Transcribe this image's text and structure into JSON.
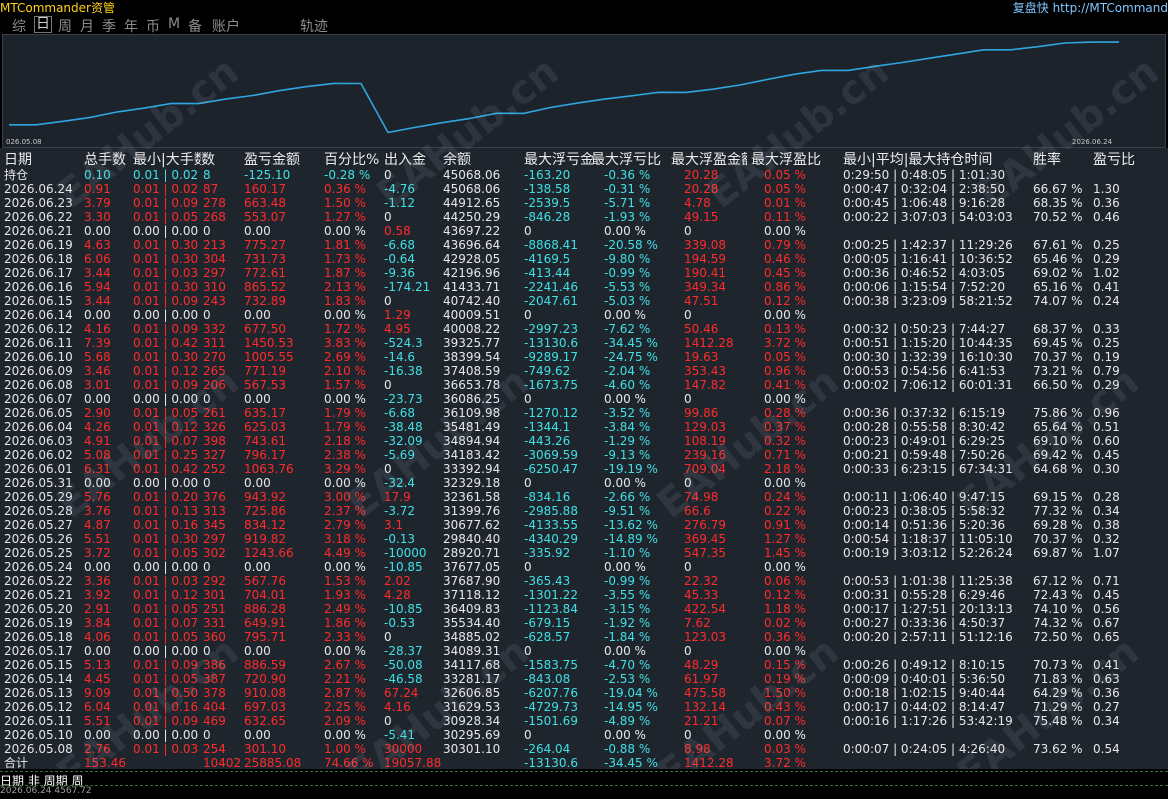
{
  "app": {
    "title": "MTCommander资管",
    "replay": "复盘快 http://MTCommand"
  },
  "tabs": [
    {
      "label": "综",
      "active": false
    },
    {
      "label": "日",
      "active": true
    },
    {
      "label": "周",
      "active": false
    },
    {
      "label": "月",
      "active": false
    },
    {
      "label": "季",
      "active": false
    },
    {
      "label": "年",
      "active": false
    },
    {
      "label": "币",
      "active": false
    },
    {
      "label": "M",
      "active": false
    },
    {
      "label": "备",
      "active": false
    },
    {
      "label": "账户",
      "active": false
    },
    {
      "label": "轨迹",
      "active": false
    }
  ],
  "equity_chart": {
    "start_label": "026.05.08",
    "end_label": "2026.06.24",
    "line_color": "#2fa6e0",
    "values": [
      30301.1,
      30295.69,
      30928.34,
      31629.53,
      32606.85,
      33281.17,
      34117.68,
      34089.31,
      34885.02,
      35534.4,
      36409.83,
      37118.12,
      37687.9,
      37677.05,
      28920.71,
      29840.4,
      30677.62,
      31399.76,
      32361.58,
      32329.18,
      33392.94,
      34183.42,
      34894.94,
      35481.49,
      36109.98,
      36086.25,
      36653.78,
      37408.59,
      38399.54,
      39325.77,
      40008.22,
      40009.51,
      40742.4,
      41433.71,
      42196.96,
      42928.05,
      43696.64,
      43697.22,
      44250.29,
      44912.65,
      45068.06,
      45068.06
    ]
  },
  "columns": [
    "日期",
    "总手数",
    "最小|大手数",
    "数",
    "盈亏金额",
    "百分比%",
    "出入金",
    "余额",
    "最大浮亏金额",
    "最大浮亏比",
    "最大浮盈金额",
    "最大浮盈比",
    "最小|平均|最大持仓时间",
    "胜率",
    "盈亏比"
  ],
  "hold_label": "持仓",
  "hold_row": {
    "lots": "0.10",
    "minmax": "0.01 | 0.02",
    "count": "8",
    "pnl": "-125.10",
    "pct": "-0.28 %",
    "io": "0",
    "balance": "45068.06",
    "dd": "-163.20",
    "ddpct": "-0.36 %",
    "fp": "20.28",
    "fppct": "0.05 %",
    "hold": "0:29:50 | 0:48:05 | 1:01:30",
    "win": "",
    "pf": ""
  },
  "rows": [
    {
      "date": "2026.06.24",
      "lots": "0.91",
      "minmax": "0.01 | 0.02",
      "count": "87",
      "pnl": "160.17",
      "pct": "0.36 %",
      "io": "-4.76",
      "balance": "45068.06",
      "dd": "-138.58",
      "ddpct": "-0.31 %",
      "fp": "20.28",
      "fppct": "0.05 %",
      "hold": "0:00:47 | 0:32:04 | 2:38:50",
      "win": "66.67 %",
      "pf": "1.30"
    },
    {
      "date": "2026.06.23",
      "lots": "3.79",
      "minmax": "0.01 | 0.09",
      "count": "278",
      "pnl": "663.48",
      "pct": "1.50 %",
      "io": "-1.12",
      "balance": "44912.65",
      "dd": "-2539.5",
      "ddpct": "-5.71 %",
      "fp": "4.78",
      "fppct": "0.01 %",
      "hold": "0:00:45 | 1:06:48 | 9:16:28",
      "win": "68.35 %",
      "pf": "0.36"
    },
    {
      "date": "2026.06.22",
      "lots": "3.30",
      "minmax": "0.01 | 0.05",
      "count": "268",
      "pnl": "553.07",
      "pct": "1.27 %",
      "io": "0",
      "balance": "44250.29",
      "dd": "-846.28",
      "ddpct": "-1.93 %",
      "fp": "49.15",
      "fppct": "0.11 %",
      "hold": "0:00:22 | 3:07:03 | 54:03:03",
      "win": "70.52 %",
      "pf": "0.46"
    },
    {
      "date": "2026.06.21",
      "lots": "0.00",
      "minmax": "0.00 | 0.00",
      "count": "0",
      "pnl": "0.00",
      "pct": "0.00 %",
      "io": "0.58",
      "balance": "43697.22",
      "dd": "0",
      "ddpct": "0.00 %",
      "fp": "0",
      "fppct": "0.00 %",
      "hold": "",
      "win": "",
      "pf": ""
    },
    {
      "date": "2026.06.19",
      "lots": "4.63",
      "minmax": "0.01 | 0.30",
      "count": "213",
      "pnl": "775.27",
      "pct": "1.81 %",
      "io": "-6.68",
      "balance": "43696.64",
      "dd": "-8868.41",
      "ddpct": "-20.58 %",
      "fp": "339.08",
      "fppct": "0.79 %",
      "hold": "0:00:25 | 1:42:37 | 11:29:26",
      "win": "67.61 %",
      "pf": "0.25"
    },
    {
      "date": "2026.06.18",
      "lots": "6.06",
      "minmax": "0.01 | 0.30",
      "count": "304",
      "pnl": "731.73",
      "pct": "1.73 %",
      "io": "-0.64",
      "balance": "42928.05",
      "dd": "-4169.5",
      "ddpct": "-9.80 %",
      "fp": "194.59",
      "fppct": "0.46 %",
      "hold": "0:00:05 | 1:16:41 | 10:36:52",
      "win": "65.46 %",
      "pf": "0.29"
    },
    {
      "date": "2026.06.17",
      "lots": "3.44",
      "minmax": "0.01 | 0.03",
      "count": "297",
      "pnl": "772.61",
      "pct": "1.87 %",
      "io": "-9.36",
      "balance": "42196.96",
      "dd": "-413.44",
      "ddpct": "-0.99 %",
      "fp": "190.41",
      "fppct": "0.45 %",
      "hold": "0:00:36 | 0:46:52 | 4:03:05",
      "win": "69.02 %",
      "pf": "1.02"
    },
    {
      "date": "2026.06.16",
      "lots": "5.94",
      "minmax": "0.01 | 0.30",
      "count": "310",
      "pnl": "865.52",
      "pct": "2.13 %",
      "io": "-174.21",
      "balance": "41433.71",
      "dd": "-2241.46",
      "ddpct": "-5.53 %",
      "fp": "349.34",
      "fppct": "0.86 %",
      "hold": "0:00:06 | 1:15:54 | 7:52:20",
      "win": "65.16 %",
      "pf": "0.41"
    },
    {
      "date": "2026.06.15",
      "lots": "3.44",
      "minmax": "0.01 | 0.09",
      "count": "243",
      "pnl": "732.89",
      "pct": "1.83 %",
      "io": "0",
      "balance": "40742.40",
      "dd": "-2047.61",
      "ddpct": "-5.03 %",
      "fp": "47.51",
      "fppct": "0.12 %",
      "hold": "0:00:38 | 3:23:09 | 58:21:52",
      "win": "74.07 %",
      "pf": "0.24"
    },
    {
      "date": "2026.06.14",
      "lots": "0.00",
      "minmax": "0.00 | 0.00",
      "count": "0",
      "pnl": "0.00",
      "pct": "0.00 %",
      "io": "1.29",
      "balance": "40009.51",
      "dd": "0",
      "ddpct": "0.00 %",
      "fp": "0",
      "fppct": "0.00 %",
      "hold": "",
      "win": "",
      "pf": ""
    },
    {
      "date": "2026.06.12",
      "lots": "4.16",
      "minmax": "0.01 | 0.09",
      "count": "332",
      "pnl": "677.50",
      "pct": "1.72 %",
      "io": "4.95",
      "balance": "40008.22",
      "dd": "-2997.23",
      "ddpct": "-7.62 %",
      "fp": "50.46",
      "fppct": "0.13 %",
      "hold": "0:00:32 | 0:50:23 | 7:44:27",
      "win": "68.37 %",
      "pf": "0.33"
    },
    {
      "date": "2026.06.11",
      "lots": "7.39",
      "minmax": "0.01 | 0.42",
      "count": "311",
      "pnl": "1450.53",
      "pct": "3.83 %",
      "io": "-524.3",
      "balance": "39325.77",
      "dd": "-13130.6",
      "ddpct": "-34.45 %",
      "fp": "1412.28",
      "fppct": "3.72 %",
      "hold": "0:00:51 | 1:15:20 | 10:44:35",
      "win": "69.45 %",
      "pf": "0.25"
    },
    {
      "date": "2026.06.10",
      "lots": "5.68",
      "minmax": "0.01 | 0.30",
      "count": "270",
      "pnl": "1005.55",
      "pct": "2.69 %",
      "io": "-14.6",
      "balance": "38399.54",
      "dd": "-9289.17",
      "ddpct": "-24.75 %",
      "fp": "19.63",
      "fppct": "0.05 %",
      "hold": "0:00:30 | 1:32:39 | 16:10:30",
      "win": "70.37 %",
      "pf": "0.19"
    },
    {
      "date": "2026.06.09",
      "lots": "3.46",
      "minmax": "0.01 | 0.12",
      "count": "265",
      "pnl": "771.19",
      "pct": "2.10 %",
      "io": "-16.38",
      "balance": "37408.59",
      "dd": "-749.62",
      "ddpct": "-2.04 %",
      "fp": "353.43",
      "fppct": "0.96 %",
      "hold": "0:00:53 | 0:54:56 | 6:41:53",
      "win": "73.21 %",
      "pf": "0.79"
    },
    {
      "date": "2026.06.08",
      "lots": "3.01",
      "minmax": "0.01 | 0.09",
      "count": "206",
      "pnl": "567.53",
      "pct": "1.57 %",
      "io": "0",
      "balance": "36653.78",
      "dd": "-1673.75",
      "ddpct": "-4.60 %",
      "fp": "147.82",
      "fppct": "0.41 %",
      "hold": "0:00:02 | 7:06:12 | 60:01:31",
      "win": "66.50 %",
      "pf": "0.29"
    },
    {
      "date": "2026.06.07",
      "lots": "0.00",
      "minmax": "0.00 | 0.00",
      "count": "0",
      "pnl": "0.00",
      "pct": "0.00 %",
      "io": "-23.73",
      "balance": "36086.25",
      "dd": "0",
      "ddpct": "0.00 %",
      "fp": "0",
      "fppct": "0.00 %",
      "hold": "",
      "win": "",
      "pf": ""
    },
    {
      "date": "2026.06.05",
      "lots": "2.90",
      "minmax": "0.01 | 0.05",
      "count": "261",
      "pnl": "635.17",
      "pct": "1.79 %",
      "io": "-6.68",
      "balance": "36109.98",
      "dd": "-1270.12",
      "ddpct": "-3.52 %",
      "fp": "99.86",
      "fppct": "0.28 %",
      "hold": "0:00:36 | 0:37:32 | 6:15:19",
      "win": "75.86 %",
      "pf": "0.96"
    },
    {
      "date": "2026.06.04",
      "lots": "4.26",
      "minmax": "0.01 | 0.12",
      "count": "326",
      "pnl": "625.03",
      "pct": "1.79 %",
      "io": "-38.48",
      "balance": "35481.49",
      "dd": "-1344.1",
      "ddpct": "-3.84 %",
      "fp": "129.03",
      "fppct": "0.37 %",
      "hold": "0:00:28 | 0:55:58 | 8:30:42",
      "win": "65.64 %",
      "pf": "0.51"
    },
    {
      "date": "2026.06.03",
      "lots": "4.91",
      "minmax": "0.01 | 0.07",
      "count": "398",
      "pnl": "743.61",
      "pct": "2.18 %",
      "io": "-32.09",
      "balance": "34894.94",
      "dd": "-443.26",
      "ddpct": "-1.29 %",
      "fp": "108.19",
      "fppct": "0.32 %",
      "hold": "0:00:23 | 0:49:01 | 6:29:25",
      "win": "69.10 %",
      "pf": "0.60"
    },
    {
      "date": "2026.06.02",
      "lots": "5.08",
      "minmax": "0.01 | 0.25",
      "count": "327",
      "pnl": "796.17",
      "pct": "2.38 %",
      "io": "-5.69",
      "balance": "34183.42",
      "dd": "-3069.59",
      "ddpct": "-9.13 %",
      "fp": "239.16",
      "fppct": "0.71 %",
      "hold": "0:00:21 | 0:59:48 | 7:50:26",
      "win": "69.42 %",
      "pf": "0.45"
    },
    {
      "date": "2026.06.01",
      "lots": "6.31",
      "minmax": "0.01 | 0.42",
      "count": "252",
      "pnl": "1063.76",
      "pct": "3.29 %",
      "io": "0",
      "balance": "33392.94",
      "dd": "-6250.47",
      "ddpct": "-19.19 %",
      "fp": "709.04",
      "fppct": "2.18 %",
      "hold": "0:00:33 | 6:23:15 | 67:34:31",
      "win": "64.68 %",
      "pf": "0.30"
    },
    {
      "date": "2026.05.31",
      "lots": "0.00",
      "minmax": "0.00 | 0.00",
      "count": "0",
      "pnl": "0.00",
      "pct": "0.00 %",
      "io": "-32.4",
      "balance": "32329.18",
      "dd": "0",
      "ddpct": "0.00 %",
      "fp": "0",
      "fppct": "0.00 %",
      "hold": "",
      "win": "",
      "pf": ""
    },
    {
      "date": "2026.05.29",
      "lots": "5.76",
      "minmax": "0.01 | 0.20",
      "count": "376",
      "pnl": "943.92",
      "pct": "3.00 %",
      "io": "17.9",
      "balance": "32361.58",
      "dd": "-834.16",
      "ddpct": "-2.66 %",
      "fp": "74.98",
      "fppct": "0.24 %",
      "hold": "0:00:11 | 1:06:40 | 9:47:15",
      "win": "69.15 %",
      "pf": "0.28"
    },
    {
      "date": "2026.05.28",
      "lots": "3.76",
      "minmax": "0.01 | 0.13",
      "count": "313",
      "pnl": "725.86",
      "pct": "2.37 %",
      "io": "-3.72",
      "balance": "31399.76",
      "dd": "-2985.88",
      "ddpct": "-9.51 %",
      "fp": "66.6",
      "fppct": "0.22 %",
      "hold": "0:00:23 | 0:38:05 | 5:58:32",
      "win": "77.32 %",
      "pf": "0.34"
    },
    {
      "date": "2026.05.27",
      "lots": "4.87",
      "minmax": "0.01 | 0.16",
      "count": "345",
      "pnl": "834.12",
      "pct": "2.79 %",
      "io": "3.1",
      "balance": "30677.62",
      "dd": "-4133.55",
      "ddpct": "-13.62 %",
      "fp": "276.79",
      "fppct": "0.91 %",
      "hold": "0:00:14 | 0:51:36 | 5:20:36",
      "win": "69.28 %",
      "pf": "0.38"
    },
    {
      "date": "2026.05.26",
      "lots": "5.51",
      "minmax": "0.01 | 0.30",
      "count": "297",
      "pnl": "919.82",
      "pct": "3.18 %",
      "io": "-0.13",
      "balance": "29840.40",
      "dd": "-4340.29",
      "ddpct": "-14.89 %",
      "fp": "369.45",
      "fppct": "1.27 %",
      "hold": "0:00:54 | 1:18:37 | 11:05:10",
      "win": "70.37 %",
      "pf": "0.32"
    },
    {
      "date": "2026.05.25",
      "lots": "3.72",
      "minmax": "0.01 | 0.05",
      "count": "302",
      "pnl": "1243.66",
      "pct": "4.49 %",
      "io": "-10000",
      "balance": "28920.71",
      "dd": "-335.92",
      "ddpct": "-1.10 %",
      "fp": "547.35",
      "fppct": "1.45 %",
      "hold": "0:00:19 | 3:03:12 | 52:26:24",
      "win": "69.87 %",
      "pf": "1.07"
    },
    {
      "date": "2026.05.24",
      "lots": "0.00",
      "minmax": "0.00 | 0.00",
      "count": "0",
      "pnl": "0.00",
      "pct": "0.00 %",
      "io": "-10.85",
      "balance": "37677.05",
      "dd": "0",
      "ddpct": "0.00 %",
      "fp": "0",
      "fppct": "0.00 %",
      "hold": "",
      "win": "",
      "pf": ""
    },
    {
      "date": "2026.05.22",
      "lots": "3.36",
      "minmax": "0.01 | 0.03",
      "count": "292",
      "pnl": "567.76",
      "pct": "1.53 %",
      "io": "2.02",
      "balance": "37687.90",
      "dd": "-365.43",
      "ddpct": "-0.99 %",
      "fp": "22.32",
      "fppct": "0.06 %",
      "hold": "0:00:53 | 1:01:38 | 11:25:38",
      "win": "67.12 %",
      "pf": "0.71"
    },
    {
      "date": "2026.05.21",
      "lots": "3.92",
      "minmax": "0.01 | 0.12",
      "count": "301",
      "pnl": "704.01",
      "pct": "1.93 %",
      "io": "4.28",
      "balance": "37118.12",
      "dd": "-1301.22",
      "ddpct": "-3.55 %",
      "fp": "45.33",
      "fppct": "0.12 %",
      "hold": "0:00:31 | 0:55:28 | 6:29:46",
      "win": "72.43 %",
      "pf": "0.45"
    },
    {
      "date": "2026.05.20",
      "lots": "2.91",
      "minmax": "0.01 | 0.05",
      "count": "251",
      "pnl": "886.28",
      "pct": "2.49 %",
      "io": "-10.85",
      "balance": "36409.83",
      "dd": "-1123.84",
      "ddpct": "-3.15 %",
      "fp": "422.54",
      "fppct": "1.18 %",
      "hold": "0:00:17 | 1:27:51 | 20:13:13",
      "win": "74.10 %",
      "pf": "0.56"
    },
    {
      "date": "2026.05.19",
      "lots": "3.84",
      "minmax": "0.01 | 0.07",
      "count": "331",
      "pnl": "649.91",
      "pct": "1.86 %",
      "io": "-0.53",
      "balance": "35534.40",
      "dd": "-679.15",
      "ddpct": "-1.92 %",
      "fp": "7.62",
      "fppct": "0.02 %",
      "hold": "0:00:27 | 0:33:36 | 4:50:37",
      "win": "74.32 %",
      "pf": "0.67"
    },
    {
      "date": "2026.05.18",
      "lots": "4.06",
      "minmax": "0.01 | 0.05",
      "count": "360",
      "pnl": "795.71",
      "pct": "2.33 %",
      "io": "0",
      "balance": "34885.02",
      "dd": "-628.57",
      "ddpct": "-1.84 %",
      "fp": "123.03",
      "fppct": "0.36 %",
      "hold": "0:00:20 | 2:57:11 | 51:12:16",
      "win": "72.50 %",
      "pf": "0.65"
    },
    {
      "date": "2026.05.17",
      "lots": "0.00",
      "minmax": "0.00 | 0.00",
      "count": "0",
      "pnl": "0.00",
      "pct": "0.00 %",
      "io": "-28.37",
      "balance": "34089.31",
      "dd": "0",
      "ddpct": "0.00 %",
      "fp": "0",
      "fppct": "0.00 %",
      "hold": "",
      "win": "",
      "pf": ""
    },
    {
      "date": "2026.05.15",
      "lots": "5.13",
      "minmax": "0.01 | 0.09",
      "count": "386",
      "pnl": "886.59",
      "pct": "2.67 %",
      "io": "-50.08",
      "balance": "34117.68",
      "dd": "-1583.75",
      "ddpct": "-4.70 %",
      "fp": "48.29",
      "fppct": "0.15 %",
      "hold": "0:00:26 | 0:49:12 | 8:10:15",
      "win": "70.73 %",
      "pf": "0.41"
    },
    {
      "date": "2026.05.14",
      "lots": "4.45",
      "minmax": "0.01 | 0.05",
      "count": "387",
      "pnl": "720.90",
      "pct": "2.21 %",
      "io": "-46.58",
      "balance": "33281.17",
      "dd": "-843.08",
      "ddpct": "-2.53 %",
      "fp": "61.97",
      "fppct": "0.19 %",
      "hold": "0:00:09 | 0:40:01 | 5:36:50",
      "win": "71.83 %",
      "pf": "0.63"
    },
    {
      "date": "2026.05.13",
      "lots": "9.09",
      "minmax": "0.01 | 0.50",
      "count": "378",
      "pnl": "910.08",
      "pct": "2.87 %",
      "io": "67.24",
      "balance": "32606.85",
      "dd": "-6207.76",
      "ddpct": "-19.04 %",
      "fp": "475.58",
      "fppct": "1.50 %",
      "hold": "0:00:18 | 1:02:15 | 9:40:44",
      "win": "64.29 %",
      "pf": "0.36"
    },
    {
      "date": "2026.05.12",
      "lots": "6.04",
      "minmax": "0.01 | 0.16",
      "count": "404",
      "pnl": "697.03",
      "pct": "2.25 %",
      "io": "4.16",
      "balance": "31629.53",
      "dd": "-4729.73",
      "ddpct": "-14.95 %",
      "fp": "132.14",
      "fppct": "0.43 %",
      "hold": "0:00:17 | 0:44:02 | 8:14:47",
      "win": "71.29 %",
      "pf": "0.27"
    },
    {
      "date": "2026.05.11",
      "lots": "5.51",
      "minmax": "0.01 | 0.09",
      "count": "469",
      "pnl": "632.65",
      "pct": "2.09 %",
      "io": "0",
      "balance": "30928.34",
      "dd": "-1501.69",
      "ddpct": "-4.89 %",
      "fp": "21.21",
      "fppct": "0.07 %",
      "hold": "0:00:16 | 1:17:26 | 53:42:19",
      "win": "75.48 %",
      "pf": "0.34"
    },
    {
      "date": "2026.05.10",
      "lots": "0.00",
      "minmax": "0.00 | 0.00",
      "count": "0",
      "pnl": "0.00",
      "pct": "0.00 %",
      "io": "-5.41",
      "balance": "30295.69",
      "dd": "0",
      "ddpct": "0.00 %",
      "fp": "0",
      "fppct": "0.00 %",
      "hold": "",
      "win": "",
      "pf": ""
    },
    {
      "date": "2026.05.08",
      "lots": "2.76",
      "minmax": "0.01 | 0.03",
      "count": "254",
      "pnl": "301.10",
      "pct": "1.00 %",
      "io": "30000",
      "balance": "30301.10",
      "dd": "-264.04",
      "ddpct": "-0.88 %",
      "fp": "8.98",
      "fppct": "0.03 %",
      "hold": "0:00:07 | 0:24:05 | 4:26:40",
      "win": "73.62 %",
      "pf": "0.54"
    }
  ],
  "total": {
    "label": "合计",
    "lots": "153.46",
    "count": "10402",
    "pnl": "25885.08",
    "pct": "74.66 %",
    "io": "19057.88",
    "dd": "-13130.6",
    "ddpct": "-34.45 %",
    "fp": "1412.28",
    "fppct": "3.72 %"
  },
  "watermark": "EAHub.cn",
  "status": {
    "line1": "日期 非 周期 周",
    "line2": "2026.06.24 4567.72"
  }
}
